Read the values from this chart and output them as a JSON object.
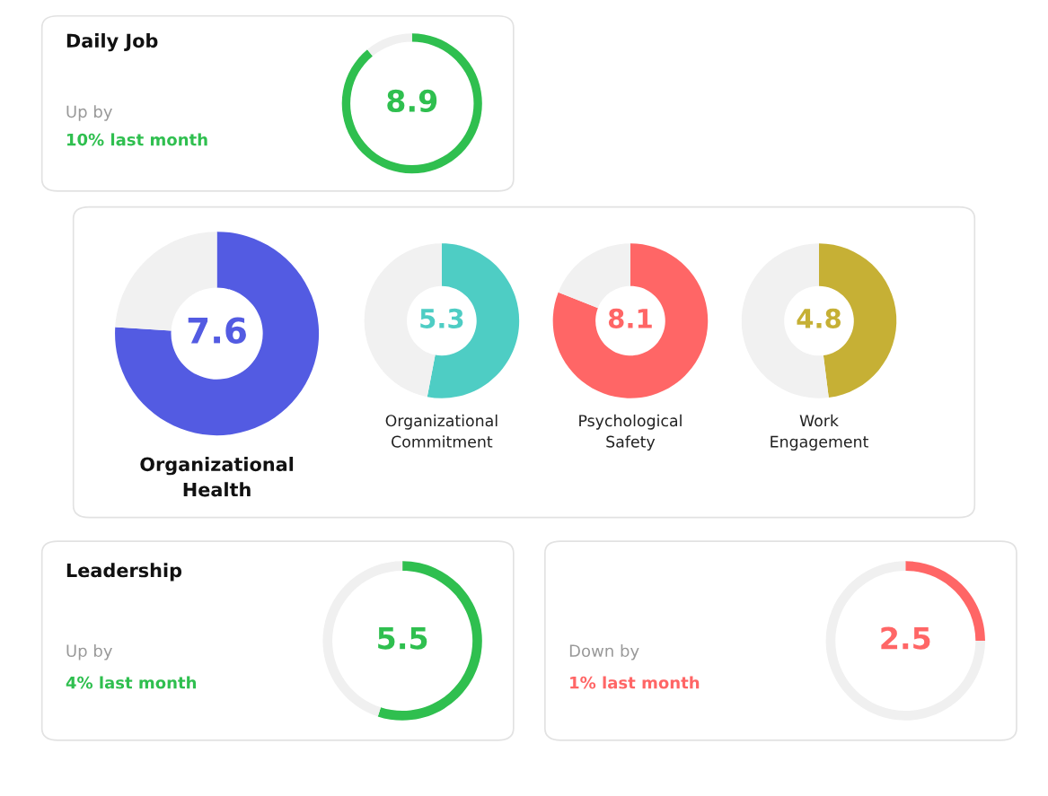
{
  "chart_data": [
    {
      "type": "donut",
      "title": "Daily Job",
      "categories": [
        null,
        null
      ],
      "values": [
        8.9,
        1.1
      ],
      "colors": [
        "#2fbf4f",
        "#f0f0f0"
      ],
      "value_labels": [
        "8.9",
        null
      ],
      "annotations": [
        "Up by",
        "10% last month"
      ]
    },
    {
      "type": "donut",
      "title": "Organizational Health",
      "categories": [
        null,
        null
      ],
      "values": [
        7.6,
        2.4
      ],
      "colors": [
        "#535be2",
        "#f1f1f1"
      ],
      "value_labels": [
        "7.6",
        null
      ]
    },
    {
      "type": "donut",
      "title": "Organizational Commitment",
      "categories": [
        null,
        null
      ],
      "values": [
        5.3,
        4.7
      ],
      "colors": [
        "#4ecdc4",
        "#f1f1f1"
      ],
      "value_labels": [
        "5.3",
        null
      ]
    },
    {
      "type": "donut",
      "title": "Psychological Safety",
      "categories": [
        null,
        null
      ],
      "values": [
        8.1,
        1.9
      ],
      "colors": [
        "#ff6666",
        "#f1f1f1"
      ],
      "value_labels": [
        "8.1",
        null
      ]
    },
    {
      "type": "donut",
      "title": "Work Engagement",
      "categories": [
        null,
        null
      ],
      "values": [
        4.8,
        5.2
      ],
      "colors": [
        "#c6b035",
        "#f1f1f1"
      ],
      "value_labels": [
        "4.8",
        null
      ]
    },
    {
      "type": "donut",
      "categories": [
        null,
        null
      ],
      "values": [
        2.5,
        7.5
      ],
      "colors": [
        "#ff6666",
        "#f0f0f0"
      ],
      "value_labels": [
        "2.5",
        null
      ],
      "annotations": [
        "Down by",
        "1% last month"
      ]
    },
    {
      "type": "donut",
      "title": "Leadership",
      "categories": [
        null,
        null
      ],
      "values": [
        5.5,
        4.5
      ],
      "colors": [
        "#2fbf4f",
        "#f0f0f0"
      ],
      "value_labels": [
        "5.5",
        null
      ],
      "annotations": [
        "Up by",
        "4% last month"
      ]
    }
  ]
}
